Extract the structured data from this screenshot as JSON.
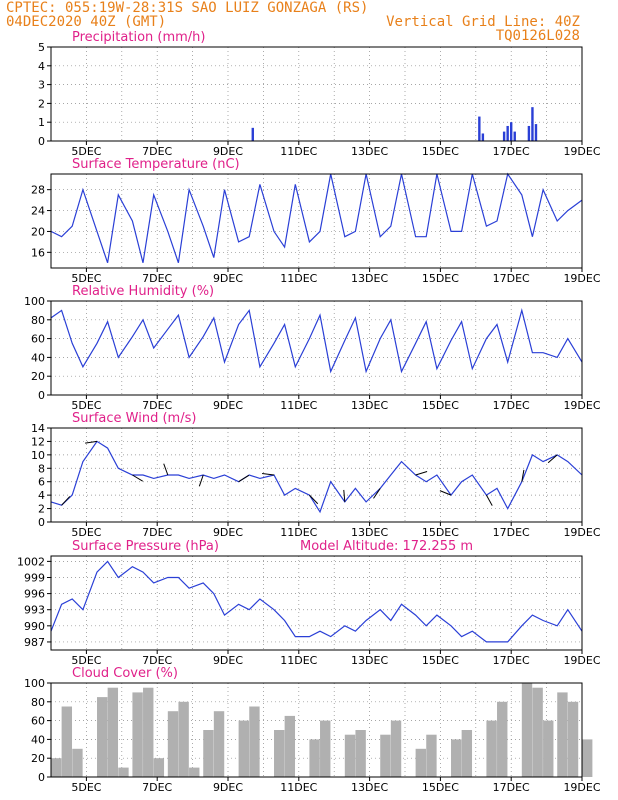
{
  "header": {
    "line1": "CPTEC:   055:19W-28:31S  SAO LUIZ GONZAGA (RS)",
    "line2_left": "04DEC2020 40Z (GMT)",
    "line2_right": "Vertical Grid Line: 40Z",
    "line3_right": "TQ0126L028"
  },
  "x_ticks": [
    "5DEC",
    "7DEC",
    "9DEC",
    "11DEC",
    "13DEC",
    "15DEC",
    "17DEC",
    "19DEC"
  ],
  "colors": {
    "series": "#2a3fd6",
    "cloud": "#b0b0b0",
    "title": "#e0218a",
    "header": "#e8801a"
  },
  "chart_data": [
    {
      "type": "bar",
      "title": "Precipitation (mm/h)",
      "ylim": [
        0,
        5
      ],
      "yticks": [
        "0",
        "1",
        "2",
        "3",
        "4",
        "5"
      ],
      "x": [
        9.7,
        16.1,
        16.2,
        16.8,
        16.9,
        17.0,
        17.1,
        17.5,
        17.6,
        17.7
      ],
      "values": [
        0.7,
        1.3,
        0.4,
        0.5,
        0.8,
        1.0,
        0.5,
        0.8,
        1.8,
        0.9
      ]
    },
    {
      "type": "line",
      "title": "Surface Temperature (nC)",
      "ylim": [
        13,
        31
      ],
      "yticks": [
        "16",
        "20",
        "24",
        "28"
      ],
      "x": [
        4.0,
        4.3,
        4.6,
        4.9,
        5.3,
        5.6,
        5.9,
        6.3,
        6.6,
        6.9,
        7.3,
        7.6,
        7.9,
        8.3,
        8.6,
        8.9,
        9.3,
        9.6,
        9.9,
        10.3,
        10.6,
        10.9,
        11.3,
        11.6,
        11.9,
        12.3,
        12.6,
        12.9,
        13.3,
        13.6,
        13.9,
        14.3,
        14.6,
        14.9,
        15.3,
        15.6,
        15.9,
        16.3,
        16.6,
        16.9,
        17.3,
        17.6,
        17.9,
        18.3,
        18.6,
        19.0
      ],
      "values": [
        20,
        19,
        21,
        28,
        20,
        14,
        27,
        22,
        14,
        27,
        20,
        14,
        28,
        21,
        15,
        28,
        18,
        19,
        29,
        20,
        17,
        29,
        18,
        20,
        31,
        19,
        20,
        31,
        19,
        21,
        31,
        19,
        19,
        31,
        20,
        20,
        31,
        21,
        22,
        31,
        27,
        19,
        28,
        22,
        24,
        26
      ]
    },
    {
      "type": "line",
      "title": "Relative Humidity (%)",
      "ylim": [
        0,
        100
      ],
      "yticks": [
        "0",
        "20",
        "40",
        "60",
        "80",
        "100"
      ],
      "x": [
        4.0,
        4.3,
        4.6,
        4.9,
        5.3,
        5.6,
        5.9,
        6.3,
        6.6,
        6.9,
        7.3,
        7.6,
        7.9,
        8.3,
        8.6,
        8.9,
        9.3,
        9.6,
        9.9,
        10.3,
        10.6,
        10.9,
        11.3,
        11.6,
        11.9,
        12.3,
        12.6,
        12.9,
        13.3,
        13.6,
        13.9,
        14.3,
        14.6,
        14.9,
        15.3,
        15.6,
        15.9,
        16.3,
        16.6,
        16.9,
        17.3,
        17.6,
        17.9,
        18.3,
        18.6,
        19.0
      ],
      "values": [
        82,
        90,
        55,
        30,
        55,
        78,
        40,
        62,
        80,
        50,
        70,
        85,
        40,
        62,
        82,
        35,
        75,
        90,
        30,
        55,
        75,
        30,
        60,
        85,
        25,
        58,
        82,
        25,
        60,
        80,
        25,
        55,
        78,
        28,
        58,
        78,
        28,
        60,
        75,
        35,
        90,
        45,
        45,
        40,
        60,
        35
      ]
    },
    {
      "type": "line",
      "title": "Surface Wind (m/s)",
      "ylim": [
        0,
        14
      ],
      "yticks": [
        "0",
        "2",
        "4",
        "6",
        "8",
        "10",
        "12",
        "14"
      ],
      "x": [
        4.0,
        4.3,
        4.6,
        4.9,
        5.3,
        5.6,
        5.9,
        6.3,
        6.6,
        6.9,
        7.3,
        7.6,
        7.9,
        8.3,
        8.6,
        8.9,
        9.3,
        9.6,
        9.9,
        10.3,
        10.6,
        10.9,
        11.3,
        11.6,
        11.9,
        12.3,
        12.6,
        12.9,
        13.3,
        13.6,
        13.9,
        14.3,
        14.6,
        14.9,
        15.3,
        15.6,
        15.9,
        16.3,
        16.6,
        16.9,
        17.3,
        17.6,
        17.9,
        18.3,
        18.6,
        19.0
      ],
      "values": [
        3,
        2.5,
        4,
        9,
        12,
        11,
        8,
        7,
        7,
        6.5,
        7,
        7,
        6.5,
        7,
        6.5,
        7,
        6,
        7,
        6.5,
        7,
        4,
        5,
        4,
        1.5,
        6,
        3,
        5,
        3,
        5,
        7,
        9,
        7,
        6,
        7,
        4,
        6,
        7,
        4,
        5,
        2,
        6,
        10,
        9,
        10,
        9,
        7
      ]
    },
    {
      "type": "line",
      "title": "Surface Pressure (hPa)",
      "annotation": "Model Altitude: 172.255 m",
      "ylim": [
        985.5,
        1003
      ],
      "yticks": [
        "987",
        "990",
        "993",
        "996",
        "999",
        "1002"
      ],
      "x": [
        4.0,
        4.3,
        4.6,
        4.9,
        5.3,
        5.6,
        5.9,
        6.3,
        6.6,
        6.9,
        7.3,
        7.6,
        7.9,
        8.3,
        8.6,
        8.9,
        9.3,
        9.6,
        9.9,
        10.3,
        10.6,
        10.9,
        11.3,
        11.6,
        11.9,
        12.3,
        12.6,
        12.9,
        13.3,
        13.6,
        13.9,
        14.3,
        14.6,
        14.9,
        15.3,
        15.6,
        15.9,
        16.3,
        16.6,
        16.9,
        17.3,
        17.6,
        17.9,
        18.3,
        18.6,
        19.0
      ],
      "values": [
        989,
        994,
        995,
        993,
        1000,
        1002,
        999,
        1001,
        1000,
        998,
        999,
        999,
        997,
        998,
        996,
        992,
        994,
        993,
        995,
        993,
        991,
        988,
        988,
        989,
        988,
        990,
        989,
        991,
        993,
        991,
        994,
        992,
        990,
        992,
        990,
        988,
        989,
        987,
        987,
        987,
        990,
        992,
        991,
        990,
        993,
        989
      ]
    },
    {
      "type": "area",
      "title": "Cloud Cover (%)",
      "ylim": [
        0,
        100
      ],
      "yticks": [
        "0",
        "20",
        "40",
        "60",
        "80",
        "100"
      ],
      "x": [
        4.0,
        4.3,
        4.6,
        4.9,
        5.3,
        5.6,
        5.9,
        6.3,
        6.6,
        6.9,
        7.3,
        7.6,
        7.9,
        8.3,
        8.6,
        8.9,
        9.3,
        9.6,
        9.9,
        10.3,
        10.6,
        10.9,
        11.3,
        11.6,
        11.9,
        12.3,
        12.6,
        12.9,
        13.3,
        13.6,
        13.9,
        14.3,
        14.6,
        14.9,
        15.3,
        15.6,
        15.9,
        16.3,
        16.6,
        16.9,
        17.3,
        17.6,
        17.9,
        18.3,
        18.6,
        19.0
      ],
      "values": [
        20,
        75,
        30,
        0,
        85,
        95,
        10,
        90,
        95,
        20,
        70,
        80,
        10,
        50,
        70,
        0,
        60,
        75,
        0,
        50,
        65,
        0,
        40,
        60,
        0,
        45,
        50,
        0,
        45,
        60,
        0,
        30,
        45,
        0,
        40,
        50,
        0,
        60,
        80,
        0,
        100,
        95,
        60,
        90,
        80,
        40
      ]
    }
  ]
}
